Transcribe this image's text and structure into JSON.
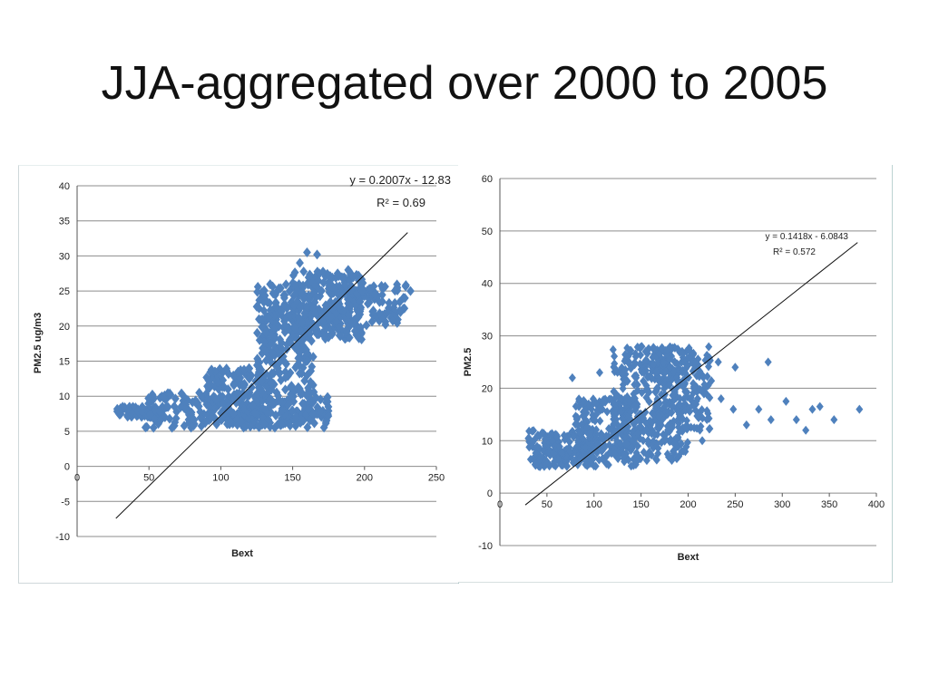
{
  "slide": {
    "title": "JJA-aggregated over 2000 to 2005"
  },
  "colors": {
    "point": "#4f81bd",
    "grid": "#8c8c8c",
    "trend": "#111111",
    "axis": "#555555"
  },
  "chart_data": [
    {
      "type": "scatter",
      "title": "",
      "xlabel": "Bext",
      "ylabel": "PM2.5 ug/m3",
      "xlim": [
        0,
        250
      ],
      "ylim": [
        -10,
        40
      ],
      "xticks": [
        0,
        50,
        100,
        150,
        200,
        250
      ],
      "yticks": [
        -10,
        -5,
        0,
        5,
        10,
        15,
        20,
        25,
        30,
        35,
        40
      ],
      "grid": "horizontal",
      "trendline": {
        "slope": 0.2007,
        "intercept": -12.83,
        "x_range": [
          27,
          230
        ]
      },
      "equation": "y = 0.2007x - 12.83",
      "r_squared": "R² = 0.69",
      "point_clusters": [
        {
          "x": [
            27,
            60
          ],
          "y": [
            7,
            8.5
          ],
          "count": 70
        },
        {
          "x": [
            45,
            120
          ],
          "y": [
            5.5,
            10.5
          ],
          "count": 150
        },
        {
          "x": [
            90,
            130
          ],
          "y": [
            6,
            14
          ],
          "count": 140
        },
        {
          "x": [
            120,
            175
          ],
          "y": [
            5.5,
            10
          ],
          "count": 150
        },
        {
          "x": [
            125,
            165
          ],
          "y": [
            10,
            26
          ],
          "count": 260
        },
        {
          "x": [
            150,
            200
          ],
          "y": [
            18,
            28
          ],
          "count": 260
        },
        {
          "x": [
            175,
            230
          ],
          "y": [
            20,
            26
          ],
          "count": 110
        }
      ],
      "points": [
        [
          160,
          30.5
        ],
        [
          167,
          30.2
        ],
        [
          155,
          29
        ],
        [
          196,
          26.5
        ],
        [
          232,
          25
        ],
        [
          105,
          11
        ],
        [
          98,
          12
        ],
        [
          85,
          10.5
        ],
        [
          65,
          10.2
        ],
        [
          60,
          9.8
        ],
        [
          112,
          13.5
        ]
      ]
    },
    {
      "type": "scatter",
      "title": "",
      "xlabel": "Bext",
      "ylabel": "PM2.5",
      "xlim": [
        0,
        400
      ],
      "ylim": [
        -10,
        60
      ],
      "xticks": [
        0,
        50,
        100,
        150,
        200,
        250,
        300,
        350,
        400
      ],
      "yticks": [
        -10,
        0,
        10,
        20,
        30,
        40,
        50,
        60
      ],
      "grid": "horizontal",
      "trendline": {
        "slope": 0.1418,
        "intercept": -6.0843,
        "x_range": [
          27,
          380
        ]
      },
      "equation": "y = 0.1418x - 6.0843",
      "r_squared": "R² = 0.572",
      "point_clusters": [
        {
          "x": [
            30,
            100
          ],
          "y": [
            5,
            12
          ],
          "count": 170
        },
        {
          "x": [
            80,
            150
          ],
          "y": [
            5,
            18
          ],
          "count": 230
        },
        {
          "x": [
            120,
            200
          ],
          "y": [
            6,
            28
          ],
          "count": 330
        },
        {
          "x": [
            165,
            225
          ],
          "y": [
            12,
            28
          ],
          "count": 190
        }
      ],
      "points": [
        [
          77,
          22
        ],
        [
          106,
          23
        ],
        [
          232,
          25
        ],
        [
          250,
          24
        ],
        [
          285,
          25
        ],
        [
          235,
          18
        ],
        [
          248,
          16
        ],
        [
          262,
          13
        ],
        [
          275,
          16
        ],
        [
          288,
          14
        ],
        [
          304,
          17.5
        ],
        [
          315,
          14
        ],
        [
          325,
          12
        ],
        [
          332,
          16
        ],
        [
          340,
          16.5
        ],
        [
          355,
          14
        ],
        [
          382,
          16
        ],
        [
          190,
          7
        ],
        [
          215,
          10
        ]
      ]
    }
  ]
}
